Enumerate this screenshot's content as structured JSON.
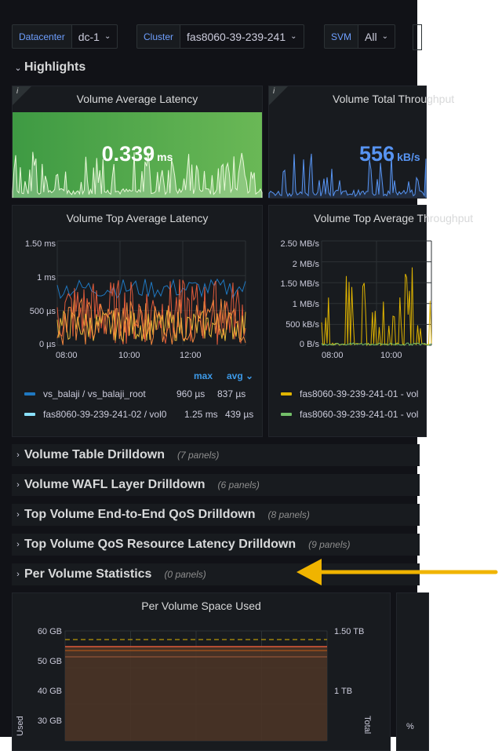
{
  "variables": [
    {
      "label": "Datacenter",
      "value": "dc-1"
    },
    {
      "label": "Cluster",
      "value": "fas8060-39-239-241"
    },
    {
      "label": "SVM",
      "value": "All"
    }
  ],
  "highlights": {
    "title": "Highlights"
  },
  "stat_latency": {
    "title": "Volume Average Latency",
    "value": "0.339",
    "unit": "ms",
    "bg": "#56a64b"
  },
  "stat_throughput": {
    "title": "Volume Total Throughput",
    "value": "556",
    "unit": "kB/s",
    "color": "#5794f2"
  },
  "latency_chart": {
    "title": "Volume Top Average Latency",
    "y_ticks": [
      "1.50 ms",
      "1 ms",
      "500 µs",
      "0 µs"
    ],
    "x_ticks": [
      "08:00",
      "10:00",
      "12:00"
    ],
    "legend_headers": {
      "max": "max",
      "avg": "avg"
    },
    "legend": [
      {
        "name": "vs_balaji / vs_balaji_root",
        "max": "960 µs",
        "avg": "837 µs",
        "color": "#1f78c1"
      },
      {
        "name": "fas8060-39-239-241-02 / vol0",
        "max": "1.25 ms",
        "avg": "439 µs",
        "color": "#8ae1fc"
      }
    ]
  },
  "throughput_chart": {
    "title": "Volume Top Average Throughput",
    "y_ticks": [
      "2.50 MB/s",
      "2 MB/s",
      "1.50 MB/s",
      "1 MB/s",
      "500 kB/s",
      "0 B/s"
    ],
    "x_ticks": [
      "08:00",
      "10:00"
    ],
    "legend": [
      {
        "name": "fas8060-39-239-241-01 - vol",
        "color": "#e0b400"
      },
      {
        "name": "fas8060-39-239-241-01 - vol",
        "color": "#73bf69"
      }
    ]
  },
  "rows": [
    {
      "title": "Volume Table Drilldown",
      "count": "(7 panels)"
    },
    {
      "title": "Volume WAFL Layer Drilldown",
      "count": "(6 panels)"
    },
    {
      "title": "Top Volume End-to-End QoS Drilldown",
      "count": "(8 panels)"
    },
    {
      "title": "Top Volume QoS Resource Latency Drilldown",
      "count": "(9 panels)"
    },
    {
      "title": "Per Volume Statistics",
      "count": "(0 panels)"
    }
  ],
  "space_chart": {
    "title": "Per Volume Space Used",
    "y_left": [
      "60 GB",
      "50 GB",
      "40 GB",
      "30 GB"
    ],
    "y_right": [
      "1.50 TB",
      "1 TB"
    ],
    "ylabel_left": "Used",
    "ylabel_right": "Total"
  },
  "colors": {
    "arrow": "#f0b400",
    "accent": "#6e9fff"
  }
}
